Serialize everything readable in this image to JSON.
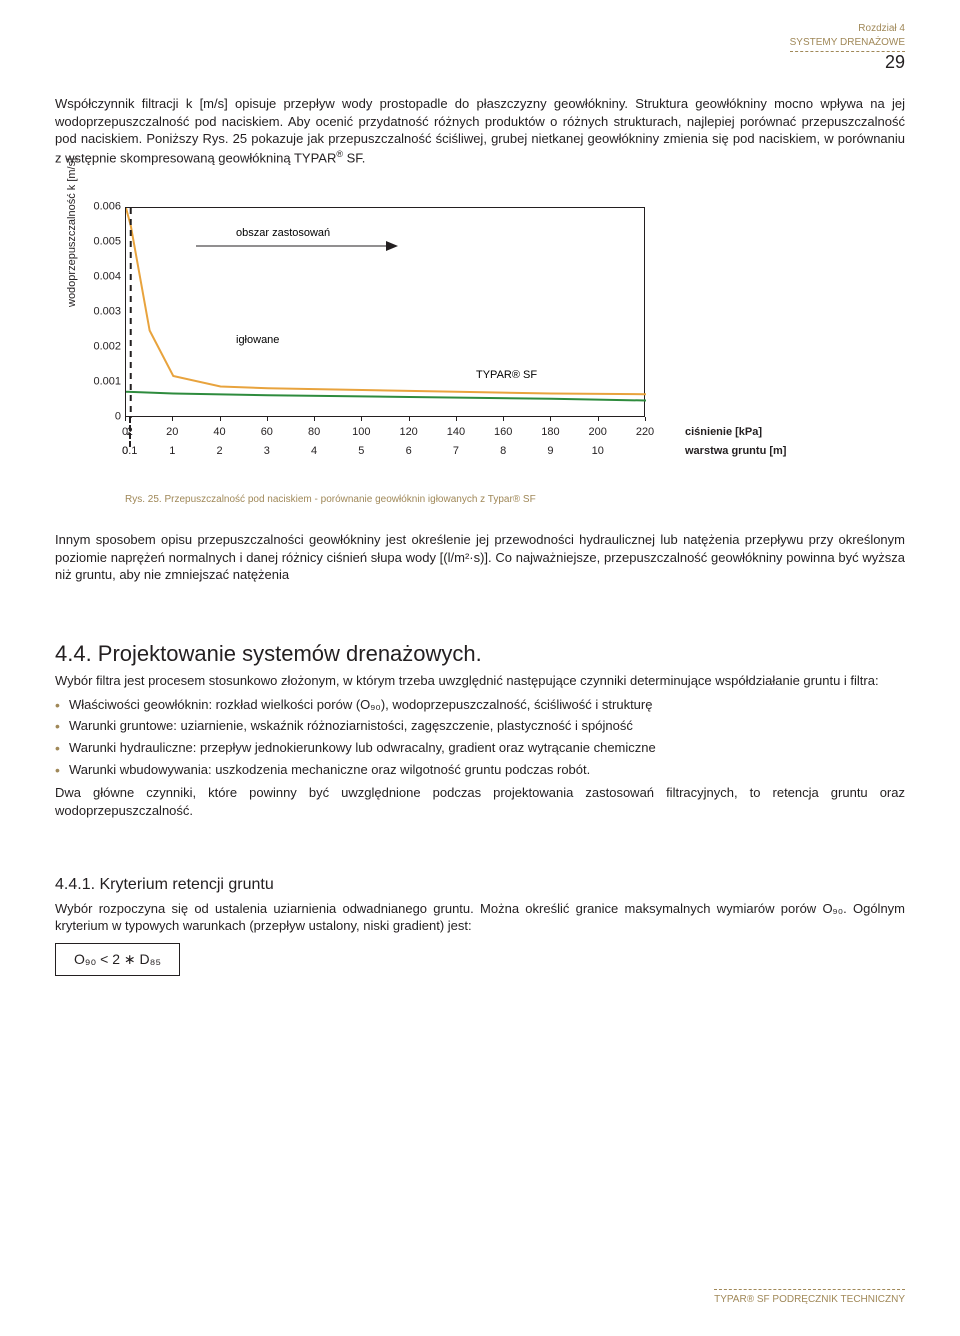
{
  "header": {
    "chapter": "Rozdział 4",
    "section": "SYSTEMY DRENAŻOWE",
    "page_number": "29"
  },
  "intro_text": "Współczynnik filtracji k [m/s] opisuje przepływ wody prostopadle do płaszczyzny geowłókniny. Struktura geowłókniny mocno wpływa na jej wodoprzepuszczalność pod naciskiem. Aby ocenić przydatność różnych produktów o różnych strukturach, najlepiej porównać przepuszczalność pod naciskiem. Poniższy Rys. 25 pokazuje jak przepuszczalność ściśliwej, grubej nietkanej geowłókniny zmienia się pod naciskiem, w porównaniu z wstępnie skompresowaną geowłókniną TYPAR",
  "intro_suffix": " SF.",
  "chart": {
    "type": "line",
    "ylabel": "wodoprzepuszczalność k [m/s]",
    "yticks": [
      "0",
      "0.001",
      "0.002",
      "0.003",
      "0.004",
      "0.005",
      "0.006"
    ],
    "yvalues": [
      0,
      0.001,
      0.002,
      0.003,
      0.004,
      0.005,
      0.006
    ],
    "ylim": [
      0,
      0.006
    ],
    "xticks_top": [
      "0",
      "2",
      "20",
      "40",
      "60",
      "80",
      "100",
      "120",
      "140",
      "160",
      "180",
      "200",
      "220"
    ],
    "xticks_bottom": [
      "0",
      "0.1",
      "1",
      "2",
      "3",
      "4",
      "5",
      "6",
      "7",
      "8",
      "9",
      "10"
    ],
    "xlim": [
      0,
      220
    ],
    "annotation_top": "obszar zastosowań",
    "annotation_mid": "igłowane",
    "series_label": "TYPAR® SF",
    "axis_label_1": "ciśnienie [kPa]",
    "axis_label_2": "warstwa gruntu [m]",
    "series": {
      "iglowane": {
        "color": "#e8a33d",
        "stroke_width": 2,
        "points": [
          [
            0,
            0.006
          ],
          [
            2,
            0.0055
          ],
          [
            10,
            0.0025
          ],
          [
            20,
            0.0012
          ],
          [
            40,
            0.0009
          ],
          [
            60,
            0.00085
          ],
          [
            100,
            0.0008
          ],
          [
            140,
            0.00075
          ],
          [
            180,
            0.0007
          ],
          [
            220,
            0.00068
          ]
        ]
      },
      "typar": {
        "color": "#2e8b3d",
        "stroke_width": 2,
        "points": [
          [
            0,
            0.00075
          ],
          [
            20,
            0.0007
          ],
          [
            60,
            0.00065
          ],
          [
            120,
            0.0006
          ],
          [
            180,
            0.00055
          ],
          [
            220,
            0.0005
          ]
        ]
      }
    },
    "dash_x": 2,
    "background_color": "#ffffff",
    "caption": "Rys. 25. Przepuszczalność pod naciskiem - porównanie geowłóknin igłowanych z Typar® SF"
  },
  "para2": "Innym sposobem opisu przepuszczalności geowłókniny jest określenie jej przewodności hydraulicznej lub natężenia przepływu przy określonym poziomie naprężeń normalnych i danej różnicy ciśnień słupa wody [(l/m²·s)]. Co najważniejsze, przepuszczalność geowłókniny powinna być wyższa niż gruntu, aby nie zmniejszać natężenia",
  "section44": {
    "title": "4.4. Projektowanie systemów drenażowych.",
    "intro": "Wybór filtra jest procesem stosunkowo złożonym, w którym trzeba uwzględnić następujące czynniki determinujące współdziałanie gruntu i filtra:",
    "bullets": [
      "Właściwości geowłóknin: rozkład wielkości porów (O₉₀), wodoprzepuszczalność, ściśliwość i strukturę",
      "Warunki gruntowe: uziarnienie, wskaźnik różnoziarnistości, zagęszczenie, plastyczność i spójność",
      "Warunki hydrauliczne: przepływ jednokierunkowy lub odwracalny, gradient oraz wytrącanie chemiczne",
      "Warunki wbudowywania: uszkodzenia mechaniczne  oraz wilgotność gruntu podczas robót."
    ],
    "outro": "Dwa główne czynniki, które powinny być uwzględnione podczas projektowania zastosowań filtracyjnych, to retencja gruntu oraz wodoprzepuszczalność."
  },
  "section441": {
    "title": "4.4.1. Kryterium retencji gruntu",
    "text": "Wybór rozpoczyna się od ustalenia uziarnienia odwadnianego gruntu. Można określić granice maksymalnych wymiarów porów O₉₀. Ogólnym kryterium w typowych warunkach (przepływ ustalony, niski gradient) jest:",
    "formula": "O₉₀ < 2 ∗ D₈₅"
  },
  "footer": "TYPAR® SF PODRĘCZNIK TECHNICZNY"
}
